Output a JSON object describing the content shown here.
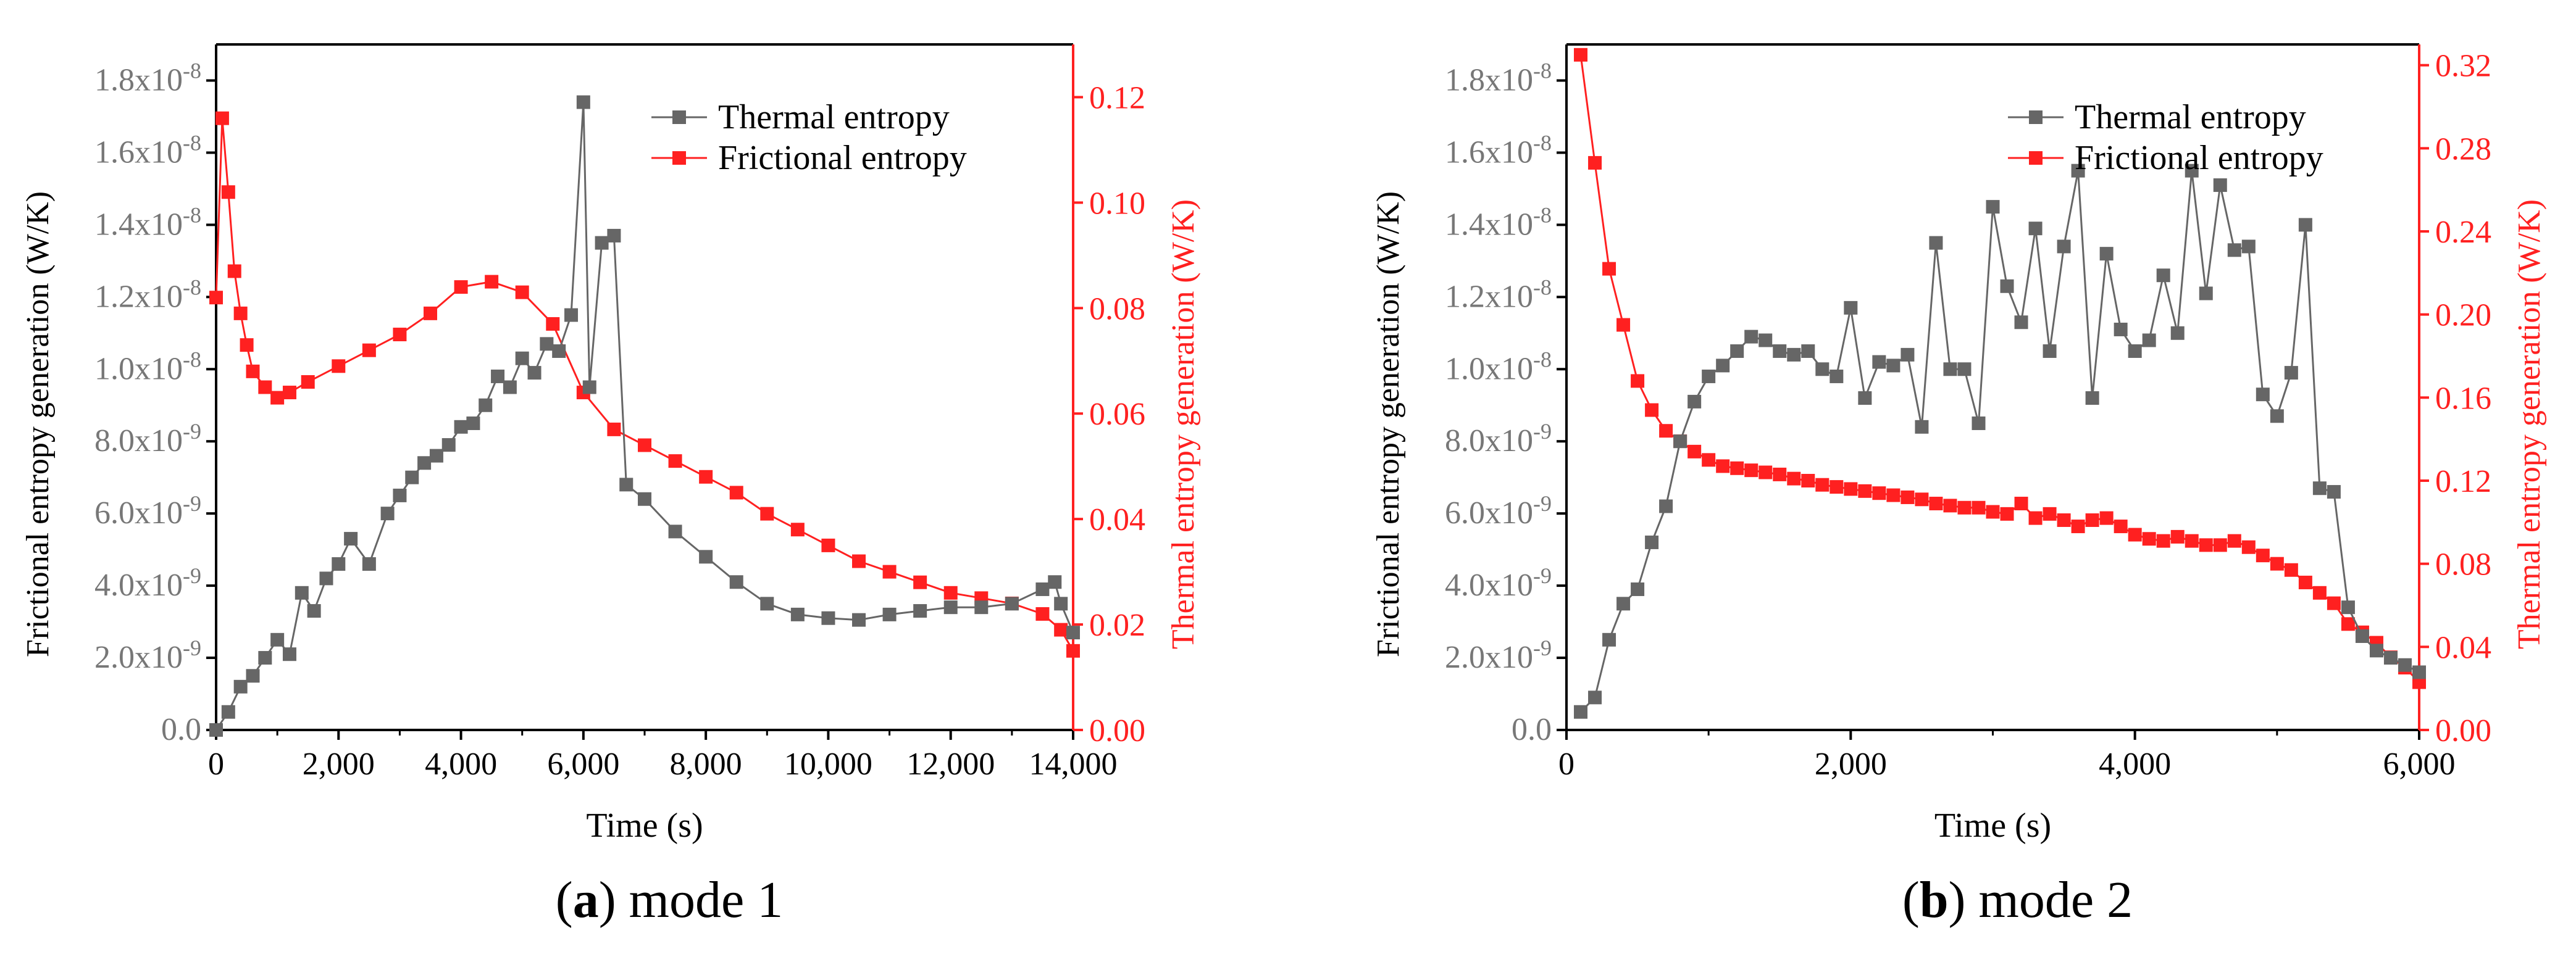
{
  "colors": {
    "thermal": "#666666",
    "frictional": "#ff2020",
    "axis": "#000000",
    "right_axis": "#ff2020",
    "left_tick": "#777777"
  },
  "chart_data": [
    {
      "id": "a",
      "type": "line",
      "caption_letter": "a",
      "caption_text": " mode 1",
      "xlabel": "Time (s)",
      "ylabel_left": "Frictional entropy generation (W/K)",
      "ylabel_right": "Thermal entropy generation (W/K)",
      "xlim": [
        0,
        14000
      ],
      "ylim_left": [
        0,
        1.9e-08
      ],
      "ylim_right": [
        0,
        0.13
      ],
      "x_ticks": [
        0,
        2000,
        4000,
        6000,
        8000,
        10000,
        12000,
        14000
      ],
      "x_tick_labels": [
        "0",
        "2,000",
        "4,000",
        "6,000",
        "8,000",
        "10,000",
        "12,000",
        "14,000"
      ],
      "left_ticks": [
        {
          "value": 0,
          "mant": "0.0",
          "exp": ""
        },
        {
          "value": 2e-09,
          "mant": "2.0x10",
          "exp": "-9"
        },
        {
          "value": 4e-09,
          "mant": "4.0x10",
          "exp": "-9"
        },
        {
          "value": 6e-09,
          "mant": "6.0x10",
          "exp": "-9"
        },
        {
          "value": 8e-09,
          "mant": "8.0x10",
          "exp": "-9"
        },
        {
          "value": 1e-08,
          "mant": "1.0x10",
          "exp": "-8"
        },
        {
          "value": 1.2e-08,
          "mant": "1.2x10",
          "exp": "-8"
        },
        {
          "value": 1.4e-08,
          "mant": "1.4x10",
          "exp": "-8"
        },
        {
          "value": 1.6e-08,
          "mant": "1.6x10",
          "exp": "-8"
        },
        {
          "value": 1.8e-08,
          "mant": "1.8x10",
          "exp": "-8"
        }
      ],
      "right_ticks": [
        0,
        0.02,
        0.04,
        0.06,
        0.08,
        0.1,
        0.12
      ],
      "right_tick_labels": [
        "0.00",
        "0.02",
        "0.04",
        "0.06",
        "0.08",
        "0.10",
        "0.12"
      ],
      "legend_position": "top-right",
      "series": [
        {
          "name": "Thermal entropy",
          "axis": "left",
          "color": "#666666",
          "x": [
            0,
            200,
            400,
            600,
            800,
            1000,
            1200,
            1400,
            1600,
            1800,
            2000,
            2200,
            2500,
            2800,
            3000,
            3200,
            3400,
            3600,
            3800,
            4000,
            4200,
            4400,
            4600,
            4800,
            5000,
            5200,
            5400,
            5600,
            5800,
            6000,
            6100,
            6300,
            6500,
            6700,
            7000,
            7500,
            8000,
            8500,
            9000,
            9500,
            10000,
            10500,
            11000,
            11500,
            12000,
            12500,
            13000,
            13500,
            13700,
            13800,
            14000
          ],
          "y": [
            0,
            5e-10,
            1.2e-09,
            1.5e-09,
            2e-09,
            2.5e-09,
            2.1e-09,
            3.8e-09,
            3.3e-09,
            4.2e-09,
            4.6e-09,
            5.3e-09,
            4.6e-09,
            6e-09,
            6.5e-09,
            7e-09,
            7.4e-09,
            7.6e-09,
            7.9e-09,
            8.4e-09,
            8.5e-09,
            9e-09,
            9.8e-09,
            9.5e-09,
            1.03e-08,
            9.9e-09,
            1.07e-08,
            1.05e-08,
            1.15e-08,
            1.74e-08,
            9.5e-09,
            1.35e-08,
            1.37e-08,
            6.8e-09,
            6.4e-09,
            5.5e-09,
            4.8e-09,
            4.1e-09,
            3.5e-09,
            3.2e-09,
            3.1e-09,
            3.05e-09,
            3.2e-09,
            3.3e-09,
            3.4e-09,
            3.4e-09,
            3.5e-09,
            3.9e-09,
            4.1e-09,
            3.5e-09,
            2.7e-09
          ]
        },
        {
          "name": "Frictional entropy",
          "axis": "right",
          "color": "#ff2020",
          "x": [
            0,
            100,
            200,
            300,
            400,
            500,
            600,
            800,
            1000,
            1200,
            1500,
            2000,
            2500,
            3000,
            3500,
            4000,
            4500,
            5000,
            5500,
            6000,
            6500,
            7000,
            7500,
            8000,
            8500,
            9000,
            9500,
            10000,
            10500,
            11000,
            11500,
            12000,
            12500,
            13000,
            13500,
            13800,
            14000
          ],
          "y": [
            0.082,
            0.116,
            0.102,
            0.087,
            0.079,
            0.073,
            0.068,
            0.065,
            0.063,
            0.064,
            0.066,
            0.069,
            0.072,
            0.075,
            0.079,
            0.084,
            0.085,
            0.083,
            0.077,
            0.064,
            0.057,
            0.054,
            0.051,
            0.048,
            0.045,
            0.041,
            0.038,
            0.035,
            0.032,
            0.03,
            0.028,
            0.026,
            0.025,
            0.024,
            0.022,
            0.019,
            0.015
          ]
        }
      ]
    },
    {
      "id": "b",
      "type": "line",
      "caption_letter": "b",
      "caption_text": " mode 2",
      "xlabel": "Time (s)",
      "ylabel_left": "Frictional entropy generation (W/K)",
      "ylabel_right": "Thermal entropy generation (W/K)",
      "xlim": [
        0,
        6000
      ],
      "ylim_left": [
        0,
        1.9e-08
      ],
      "ylim_right": [
        0,
        0.33
      ],
      "x_ticks": [
        0,
        2000,
        4000,
        6000
      ],
      "x_tick_labels": [
        "0",
        "2,000",
        "4,000",
        "6,000"
      ],
      "left_ticks": [
        {
          "value": 0,
          "mant": "0.0",
          "exp": ""
        },
        {
          "value": 2e-09,
          "mant": "2.0x10",
          "exp": "-9"
        },
        {
          "value": 4e-09,
          "mant": "4.0x10",
          "exp": "-9"
        },
        {
          "value": 6e-09,
          "mant": "6.0x10",
          "exp": "-9"
        },
        {
          "value": 8e-09,
          "mant": "8.0x10",
          "exp": "-9"
        },
        {
          "value": 1e-08,
          "mant": "1.0x10",
          "exp": "-8"
        },
        {
          "value": 1.2e-08,
          "mant": "1.2x10",
          "exp": "-8"
        },
        {
          "value": 1.4e-08,
          "mant": "1.4x10",
          "exp": "-8"
        },
        {
          "value": 1.6e-08,
          "mant": "1.6x10",
          "exp": "-8"
        },
        {
          "value": 1.8e-08,
          "mant": "1.8x10",
          "exp": "-8"
        }
      ],
      "right_ticks": [
        0,
        0.04,
        0.08,
        0.12,
        0.16,
        0.2,
        0.24,
        0.28,
        0.32
      ],
      "right_tick_labels": [
        "0.00",
        "0.04",
        "0.08",
        "0.12",
        "0.16",
        "0.20",
        "0.24",
        "0.28",
        "0.32"
      ],
      "legend_position": "top-right",
      "series": [
        {
          "name": "Thermal entropy",
          "axis": "left",
          "color": "#666666",
          "x": [
            100,
            200,
            300,
            400,
            500,
            600,
            700,
            800,
            900,
            1000,
            1100,
            1200,
            1300,
            1400,
            1500,
            1600,
            1700,
            1800,
            1900,
            2000,
            2100,
            2200,
            2300,
            2400,
            2500,
            2600,
            2700,
            2800,
            2900,
            3000,
            3100,
            3200,
            3300,
            3400,
            3500,
            3600,
            3700,
            3800,
            3900,
            4000,
            4100,
            4200,
            4300,
            4400,
            4500,
            4600,
            4700,
            4800,
            4900,
            5000,
            5100,
            5200,
            5300,
            5400,
            5500,
            5600,
            5700,
            5800,
            5900,
            6000
          ],
          "y": [
            5e-10,
            9e-10,
            2.5e-09,
            3.5e-09,
            3.9e-09,
            5.2e-09,
            6.2e-09,
            8e-09,
            9.1e-09,
            9.8e-09,
            1.01e-08,
            1.05e-08,
            1.09e-08,
            1.08e-08,
            1.05e-08,
            1.04e-08,
            1.05e-08,
            1e-08,
            9.8e-09,
            1.17e-08,
            9.2e-09,
            1.02e-08,
            1.01e-08,
            1.04e-08,
            8.4e-09,
            1.35e-08,
            1e-08,
            1e-08,
            8.5e-09,
            1.45e-08,
            1.23e-08,
            1.13e-08,
            1.39e-08,
            1.05e-08,
            1.34e-08,
            1.55e-08,
            9.2e-09,
            1.32e-08,
            1.11e-08,
            1.05e-08,
            1.08e-08,
            1.26e-08,
            1.1e-08,
            1.55e-08,
            1.21e-08,
            1.51e-08,
            1.33e-08,
            1.34e-08,
            9.3e-09,
            8.7e-09,
            9.9e-09,
            1.4e-08,
            6.7e-09,
            6.6e-09,
            3.4e-09,
            2.6e-09,
            2.2e-09,
            2e-09,
            1.8e-09,
            1.6e-09
          ]
        },
        {
          "name": "Frictional entropy",
          "axis": "right",
          "color": "#ff2020",
          "x": [
            100,
            200,
            300,
            400,
            500,
            600,
            700,
            800,
            900,
            1000,
            1100,
            1200,
            1300,
            1400,
            1500,
            1600,
            1700,
            1800,
            1900,
            2000,
            2100,
            2200,
            2300,
            2400,
            2500,
            2600,
            2700,
            2800,
            2900,
            3000,
            3100,
            3200,
            3300,
            3400,
            3500,
            3600,
            3700,
            3800,
            3900,
            4000,
            4100,
            4200,
            4300,
            4400,
            4500,
            4600,
            4700,
            4800,
            4900,
            5000,
            5100,
            5200,
            5300,
            5400,
            5500,
            5600,
            5700,
            5800,
            5900,
            6000
          ],
          "y": [
            0.325,
            0.273,
            0.222,
            0.195,
            0.168,
            0.154,
            0.144,
            0.139,
            0.134,
            0.13,
            0.127,
            0.126,
            0.125,
            0.124,
            0.123,
            0.121,
            0.12,
            0.118,
            0.117,
            0.116,
            0.115,
            0.114,
            0.113,
            0.112,
            0.111,
            0.109,
            0.108,
            0.107,
            0.107,
            0.105,
            0.104,
            0.109,
            0.102,
            0.104,
            0.101,
            0.098,
            0.101,
            0.102,
            0.098,
            0.094,
            0.092,
            0.091,
            0.093,
            0.091,
            0.089,
            0.089,
            0.091,
            0.088,
            0.084,
            0.08,
            0.077,
            0.071,
            0.066,
            0.061,
            0.051,
            0.047,
            0.042,
            0.035,
            0.03,
            0.023
          ]
        }
      ]
    }
  ]
}
